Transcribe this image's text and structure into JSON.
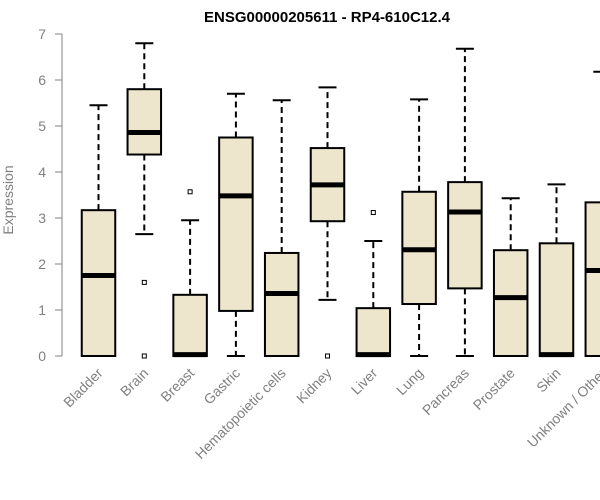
{
  "colors": {
    "box_fill": "#ede6cc",
    "box_stroke": "#000000",
    "axis": "#808080",
    "tick_text": "#808080",
    "title": "#000000"
  },
  "chart_data": {
    "type": "boxplot",
    "title": "ENSG00000205611 - RP4-610C12.4",
    "xlabel": "",
    "ylabel": "Expression",
    "ylim": [
      0,
      7
    ],
    "yticks": [
      0,
      1,
      2,
      3,
      4,
      5,
      6,
      7
    ],
    "grid": false,
    "categories": [
      "Bladder",
      "Brain",
      "Breast",
      "Gastric",
      "Hematopoietic cells",
      "Kidney",
      "Liver",
      "Lung",
      "Pancreas",
      "Prostate",
      "Skin",
      "Unknown / Other"
    ],
    "boxes": [
      {
        "category": "Bladder",
        "whisker_low": 0,
        "q1": 0,
        "median": 1.75,
        "q3": 3.17,
        "whisker_high": 5.45,
        "outliers": []
      },
      {
        "category": "Brain",
        "whisker_low": 2.65,
        "q1": 4.38,
        "median": 4.86,
        "q3": 5.8,
        "whisker_high": 6.8,
        "outliers": [
          1.6,
          0
        ]
      },
      {
        "category": "Breast",
        "whisker_low": 0,
        "q1": 0,
        "median": 0.03,
        "q3": 1.33,
        "whisker_high": 2.95,
        "outliers": [
          3.57
        ]
      },
      {
        "category": "Gastric",
        "whisker_low": 0,
        "q1": 0.98,
        "median": 3.48,
        "q3": 4.75,
        "whisker_high": 5.7,
        "outliers": []
      },
      {
        "category": "Hematopoietic cells",
        "whisker_low": 0,
        "q1": 0,
        "median": 1.36,
        "q3": 2.24,
        "whisker_high": 5.56,
        "outliers": []
      },
      {
        "category": "Kidney",
        "whisker_low": 1.22,
        "q1": 2.93,
        "median": 3.72,
        "q3": 4.52,
        "whisker_high": 5.84,
        "outliers": [
          0
        ]
      },
      {
        "category": "Liver",
        "whisker_low": 0,
        "q1": 0,
        "median": 0.03,
        "q3": 1.04,
        "whisker_high": 2.5,
        "outliers": [
          3.12
        ]
      },
      {
        "category": "Lung",
        "whisker_low": 0,
        "q1": 1.13,
        "median": 2.31,
        "q3": 3.57,
        "whisker_high": 5.58,
        "outliers": []
      },
      {
        "category": "Pancreas",
        "whisker_low": 0,
        "q1": 1.47,
        "median": 3.13,
        "q3": 3.78,
        "whisker_high": 6.68,
        "outliers": []
      },
      {
        "category": "Prostate",
        "whisker_low": 0,
        "q1": 0,
        "median": 1.27,
        "q3": 2.3,
        "whisker_high": 3.43,
        "outliers": []
      },
      {
        "category": "Skin",
        "whisker_low": 0,
        "q1": 0,
        "median": 0.03,
        "q3": 2.45,
        "whisker_high": 3.73,
        "outliers": []
      },
      {
        "category": "Unknown / Other",
        "whisker_low": 0,
        "q1": 0,
        "median": 1.86,
        "q3": 3.34,
        "whisker_high": 6.18,
        "outliers": []
      }
    ]
  }
}
